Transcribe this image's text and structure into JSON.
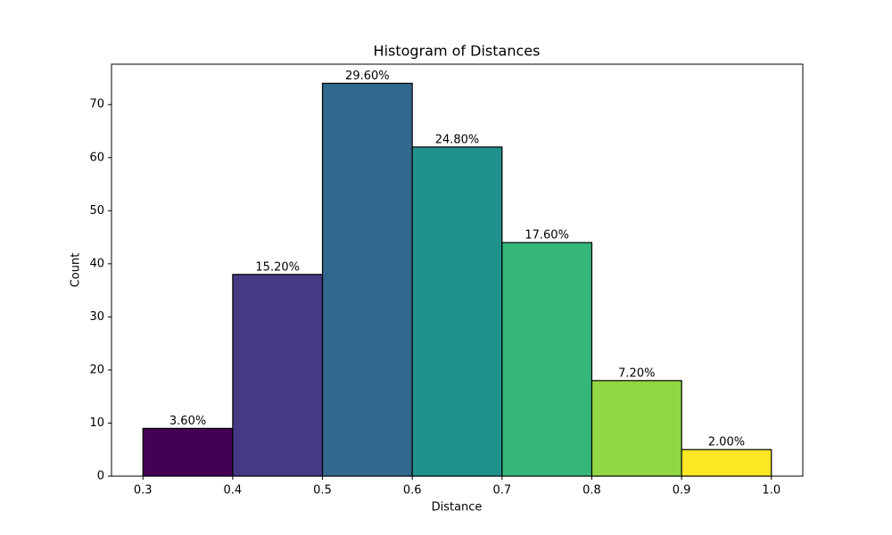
{
  "chart_data": {
    "type": "histogram",
    "title": "Histogram of Distances",
    "x_label": "Distance",
    "y_label": "Count",
    "bins": [
      0.3,
      0.4,
      0.5,
      0.6,
      0.7,
      0.8,
      0.9,
      1.0
    ],
    "values": [
      9,
      38,
      74,
      62,
      44,
      18,
      5
    ],
    "value_labels": [
      "3.60%",
      "15.20%",
      "29.60%",
      "24.80%",
      "17.60%",
      "7.20%",
      "2.00%"
    ],
    "colors": [
      "#440154",
      "#443983",
      "#31688e",
      "#21918c",
      "#35b779",
      "#90d743",
      "#fde725"
    ],
    "edge_color": "#000000",
    "xlim": [
      0.265,
      1.035
    ],
    "ylim": [
      0,
      77.6
    ],
    "xticks": [
      0.3,
      0.4,
      0.5,
      0.6,
      0.7,
      0.8,
      0.9,
      {
        "value": 1.0,
        "label": "1.0"
      }
    ],
    "yticks": [
      0,
      10,
      20,
      30,
      40,
      50,
      60,
      70
    ],
    "grid": false
  }
}
